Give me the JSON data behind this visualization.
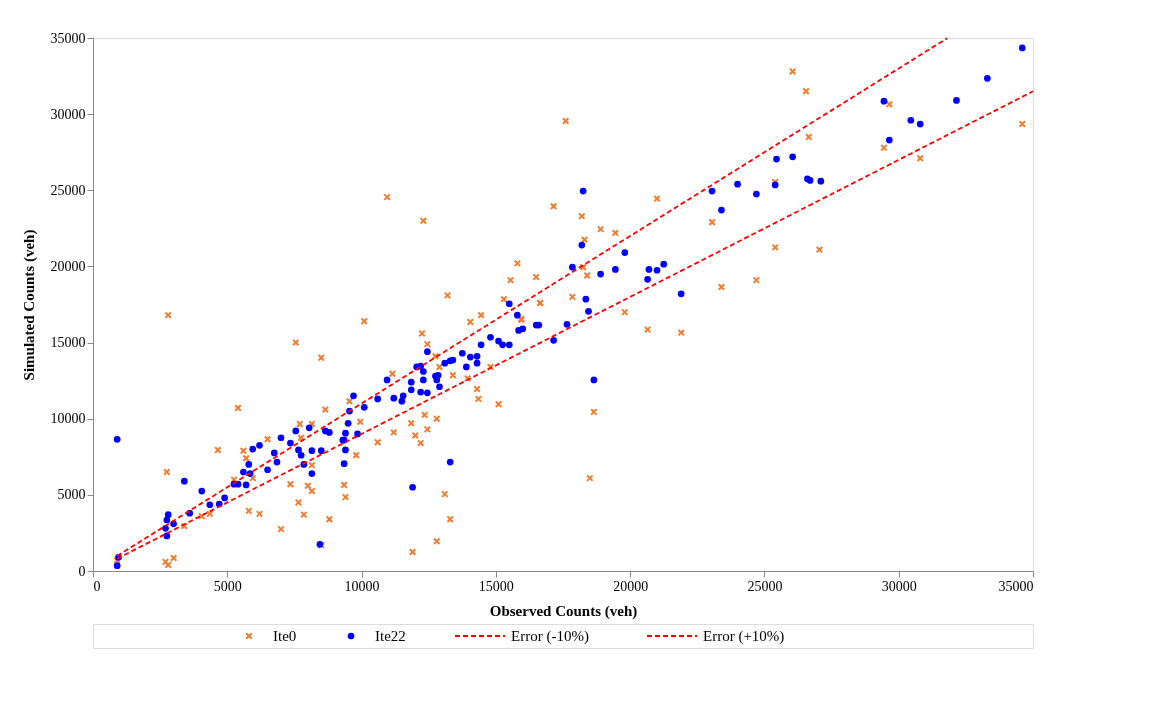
{
  "chart_data": {
    "type": "scatter",
    "xlabel": "Observed Counts (veh)",
    "ylabel": "Simulated Counts (veh)",
    "xlim": [
      0,
      35000
    ],
    "ylim": [
      0,
      35000
    ],
    "xticks": [
      0,
      5000,
      10000,
      15000,
      20000,
      25000,
      30000,
      35000
    ],
    "yticks": [
      0,
      5000,
      10000,
      15000,
      20000,
      25000,
      30000,
      35000
    ],
    "grid": false,
    "legend": "bottom",
    "series": [
      {
        "name": "Ite0",
        "color": "#ed7d31",
        "marker": "cross",
        "x": [
          2800,
          2750,
          2800,
          2700,
          3000,
          900,
          4650,
          5400,
          7550,
          8500,
          8650,
          6500,
          5600,
          5700,
          5250,
          5950,
          4050,
          4350,
          3400,
          5800,
          6200,
          7000,
          7350,
          7650,
          7850,
          8000,
          8150,
          8800,
          8500,
          8150,
          7750,
          7700,
          8150,
          9400,
          9350,
          10100,
          12250,
          12450,
          12750,
          12900,
          11150,
          9550,
          9950,
          9800,
          10600,
          11200,
          11850,
          12000,
          12200,
          12350,
          12450,
          12800,
          13400,
          13950,
          14300,
          14350,
          15100,
          14800,
          14050,
          14450,
          15950,
          16650,
          15300,
          13100,
          13300,
          12800,
          11900,
          10950,
          12300,
          17150,
          18200,
          18900,
          18300,
          18250,
          18400,
          15800,
          15550,
          16500,
          17850,
          16650,
          15950,
          13200,
          17600,
          19450,
          21000,
          23050,
          25400,
          26650,
          25400,
          27050,
          24700,
          23400,
          19800,
          20650,
          21900,
          18650,
          18500,
          29650,
          29450,
          30800,
          34600,
          26050,
          26550
        ],
        "values": [
          16800,
          6500,
          400,
          600,
          850,
          700,
          7950,
          10700,
          15000,
          14000,
          10600,
          8650,
          7900,
          7400,
          6000,
          6100,
          3600,
          3750,
          2950,
          3950,
          3750,
          2750,
          5700,
          4500,
          3700,
          5600,
          5250,
          3400,
          1700,
          6950,
          8750,
          9650,
          9650,
          4850,
          5650,
          16400,
          15600,
          14900,
          14100,
          13400,
          12950,
          11150,
          9800,
          7600,
          8450,
          9100,
          9700,
          8900,
          8400,
          10250,
          9300,
          10000,
          12850,
          12650,
          11950,
          11300,
          10950,
          13400,
          16350,
          16800,
          16550,
          17600,
          17850,
          5050,
          3400,
          1950,
          1250,
          24550,
          23000,
          23950,
          23300,
          22450,
          21750,
          19950,
          19400,
          20200,
          19100,
          19300,
          18000,
          17600,
          16500,
          18100,
          29550,
          22200,
          24450,
          22900,
          25550,
          28500,
          21250,
          21100,
          19100,
          18650,
          17000,
          15850,
          15650,
          10450,
          6100,
          30650,
          27800,
          27100,
          29350,
          32800,
          31500
        ]
      },
      {
        "name": "Ite22",
        "color": "#0000ff",
        "marker": "circle",
        "x": [
          900,
          900,
          950,
          2700,
          2750,
          2800,
          2750,
          3000,
          3400,
          3600,
          4050,
          4350,
          4700,
          4900,
          5250,
          5400,
          5700,
          5600,
          5850,
          5800,
          5950,
          6200,
          6500,
          6750,
          6850,
          7000,
          7350,
          7550,
          7650,
          7750,
          7850,
          8050,
          8150,
          8150,
          8500,
          8650,
          8800,
          8450,
          9350,
          9700,
          9550,
          9500,
          9400,
          9300,
          9400,
          9350,
          9850,
          10100,
          10600,
          10950,
          11200,
          11500,
          11550,
          11850,
          11850,
          12050,
          12200,
          12300,
          12300,
          12200,
          12450,
          12450,
          12750,
          12800,
          12900,
          12850,
          13100,
          13300,
          13400,
          13750,
          13900,
          14050,
          14300,
          14300,
          14450,
          14800,
          15100,
          15250,
          15500,
          15500,
          15800,
          15850,
          16000,
          16500,
          16600,
          17150,
          17650,
          11900,
          13300,
          18250,
          18200,
          17850,
          18900,
          18350,
          18450,
          19800,
          19450,
          20650,
          20700,
          21000,
          21250,
          21900,
          18650,
          23050,
          23400,
          24000,
          24700,
          25400,
          25450,
          26050,
          26600,
          26700,
          27100,
          29450,
          30450,
          30800,
          29650,
          32150,
          33300,
          34600
        ],
        "values": [
          8650,
          350,
          900,
          2800,
          2300,
          3700,
          3350,
          3100,
          5900,
          3800,
          5250,
          4350,
          4400,
          4800,
          5700,
          5700,
          5650,
          6500,
          6400,
          7000,
          8000,
          8250,
          6650,
          7750,
          7150,
          8750,
          8400,
          9200,
          7950,
          7600,
          7000,
          9400,
          7900,
          6400,
          7900,
          9200,
          9100,
          1750,
          8600,
          11500,
          10500,
          9700,
          9050,
          8600,
          7950,
          7050,
          9000,
          10750,
          11300,
          12550,
          11350,
          11150,
          11500,
          12400,
          11900,
          13400,
          13450,
          13100,
          12550,
          11750,
          11700,
          14400,
          12800,
          12550,
          12100,
          12850,
          13650,
          13800,
          13850,
          14300,
          13400,
          14050,
          14100,
          13650,
          14850,
          15350,
          15100,
          14850,
          14850,
          17550,
          16800,
          15800,
          15900,
          16150,
          16150,
          15150,
          16200,
          5500,
          7150,
          24950,
          21400,
          19950,
          19500,
          17850,
          17050,
          20900,
          19800,
          19150,
          19800,
          19750,
          20150,
          18200,
          12550,
          24950,
          23700,
          25400,
          24750,
          25350,
          27050,
          27200,
          25750,
          25650,
          25600,
          30850,
          29600,
          29350,
          28300,
          30900,
          32350,
          34350
        ]
      },
      {
        "name": "Error (-10%)",
        "color": "#ff0000",
        "type": "line",
        "line_style": "dashed",
        "x": [
          900,
          31800
        ],
        "values": [
          990,
          34980
        ]
      },
      {
        "name": "Error (+10%)",
        "color": "#ff0000",
        "type": "line",
        "line_style": "dashed",
        "x": [
          900,
          35000
        ],
        "values": [
          810,
          31500
        ]
      }
    ]
  }
}
